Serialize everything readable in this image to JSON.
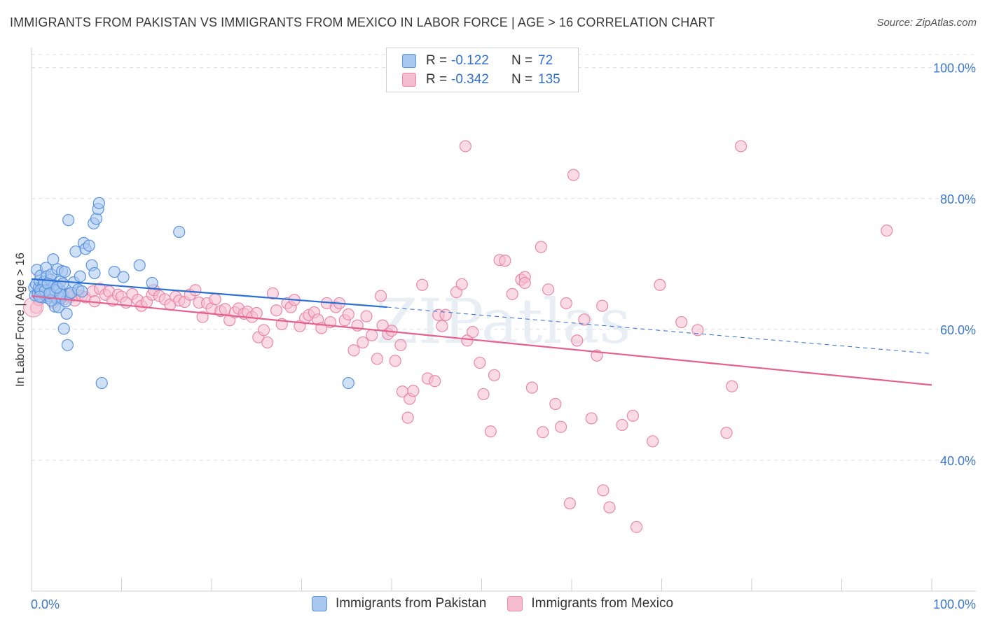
{
  "header": {
    "title": "IMMIGRANTS FROM PAKISTAN VS IMMIGRANTS FROM MEXICO IN LABOR FORCE | AGE > 16 CORRELATION CHART",
    "source": "Source: ZipAtlas.com"
  },
  "watermark": "ZIPatlas",
  "legend": {
    "pakistan": {
      "r_label": "R =",
      "r_value": "-0.122",
      "n_label": "N =",
      "n_value": "72"
    },
    "mexico": {
      "r_label": "R =",
      "r_value": "-0.342",
      "n_label": "N =",
      "n_value": "135"
    }
  },
  "colors": {
    "pakistan_fill": "#a9c8f0",
    "pakistan_stroke": "#5b93dd",
    "pakistan_line": "#2a6fd6",
    "mexico_fill": "#f6bdd0",
    "mexico_stroke": "#e888a8",
    "mexico_line": "#e4608f",
    "axis_text": "#3d78c9",
    "grid": "#dcdcdc"
  },
  "chart_data": {
    "type": "scatter",
    "title": "IMMIGRANTS FROM PAKISTAN VS IMMIGRANTS FROM MEXICO IN LABOR FORCE | AGE > 16 CORRELATION CHART",
    "xlabel": "",
    "ylabel": "In Labor Force | Age > 16",
    "xlim": [
      0,
      100
    ],
    "ylim": [
      20,
      102
    ],
    "x_tick_labels": [
      "0.0%",
      "100.0%"
    ],
    "y_ticks": [
      40,
      60,
      80,
      100
    ],
    "y_tick_labels": [
      "40.0%",
      "60.0%",
      "80.0%",
      "100.0%"
    ],
    "grid": true,
    "legend_position": "top-center",
    "series": [
      {
        "name": "Immigrants from Pakistan",
        "trend": {
          "x0": 0,
          "y0": 67.7,
          "x1": 39.5,
          "y1": 63.4,
          "dashed_to_x": 100,
          "dashed_to_y": 56.3
        },
        "points": [
          [
            0.3,
            66.4
          ],
          [
            0.4,
            65.2
          ],
          [
            0.5,
            66.9
          ],
          [
            0.6,
            69.1
          ],
          [
            0.7,
            65.4
          ],
          [
            0.8,
            66.3
          ],
          [
            0.9,
            67.4
          ],
          [
            1.0,
            68.2
          ],
          [
            1.1,
            65.6
          ],
          [
            1.2,
            64.9
          ],
          [
            1.3,
            66.8
          ],
          [
            1.4,
            67.3
          ],
          [
            1.5,
            65.3
          ],
          [
            1.6,
            69.4
          ],
          [
            1.7,
            68.1
          ],
          [
            1.8,
            64.8
          ],
          [
            1.9,
            65.1
          ],
          [
            2.0,
            66.2
          ],
          [
            2.1,
            67.6
          ],
          [
            2.2,
            68.4
          ],
          [
            2.3,
            65.7
          ],
          [
            2.4,
            70.7
          ],
          [
            2.5,
            66.6
          ],
          [
            2.6,
            63.5
          ],
          [
            2.7,
            65.8
          ],
          [
            2.8,
            64.7
          ],
          [
            2.9,
            69.2
          ],
          [
            3.0,
            63.4
          ],
          [
            3.1,
            66.2
          ],
          [
            3.2,
            67.3
          ],
          [
            3.3,
            64.8
          ],
          [
            3.4,
            68.9
          ],
          [
            3.5,
            65.2
          ],
          [
            3.6,
            60.1
          ],
          [
            3.7,
            68.8
          ],
          [
            3.8,
            64.3
          ],
          [
            3.9,
            62.4
          ],
          [
            4.0,
            57.6
          ],
          [
            4.1,
            76.7
          ],
          [
            4.2,
            65.4
          ],
          [
            4.4,
            65.6
          ],
          [
            4.7,
            67.2
          ],
          [
            4.9,
            71.9
          ],
          [
            5.2,
            66.1
          ],
          [
            5.4,
            68.1
          ],
          [
            5.6,
            65.8
          ],
          [
            5.8,
            73.2
          ],
          [
            6.0,
            72.3
          ],
          [
            6.4,
            72.8
          ],
          [
            6.7,
            69.8
          ],
          [
            6.9,
            76.2
          ],
          [
            7.0,
            68.6
          ],
          [
            7.2,
            76.9
          ],
          [
            7.4,
            78.4
          ],
          [
            7.5,
            79.3
          ],
          [
            7.8,
            51.8
          ],
          [
            9.2,
            68.8
          ],
          [
            10.2,
            68.0
          ],
          [
            12.0,
            69.8
          ],
          [
            13.4,
            67.1
          ],
          [
            16.4,
            74.9
          ],
          [
            35.2,
            51.8
          ],
          [
            1.0,
            66.0
          ],
          [
            1.5,
            65.9
          ],
          [
            2.2,
            64.4
          ],
          [
            2.6,
            66.0
          ],
          [
            3.2,
            65.4
          ],
          [
            0.9,
            65.0
          ],
          [
            1.8,
            67.0
          ],
          [
            2.0,
            65.5
          ],
          [
            2.8,
            66.4
          ],
          [
            3.5,
            67.0
          ]
        ]
      },
      {
        "name": "Immigrants from Mexico",
        "trend": {
          "x0": 0,
          "y0": 65.1,
          "x1": 100,
          "y1": 51.5
        },
        "points": [
          [
            0.5,
            63.3
          ],
          [
            0.8,
            64.5
          ],
          [
            1.2,
            66.0
          ],
          [
            1.6,
            65.0
          ],
          [
            2.0,
            65.6
          ],
          [
            2.4,
            64.1
          ],
          [
            2.8,
            65.5
          ],
          [
            3.2,
            64.9
          ],
          [
            3.6,
            64.6
          ],
          [
            4.0,
            65.3
          ],
          [
            4.4,
            65.0
          ],
          [
            4.8,
            64.4
          ],
          [
            5.2,
            65.2
          ],
          [
            5.6,
            65.1
          ],
          [
            6.0,
            64.9
          ],
          [
            6.8,
            65.8
          ],
          [
            7.0,
            64.3
          ],
          [
            7.6,
            66.2
          ],
          [
            8.2,
            65.3
          ],
          [
            8.6,
            65.8
          ],
          [
            9.0,
            64.4
          ],
          [
            9.6,
            65.3
          ],
          [
            10.0,
            65.0
          ],
          [
            10.5,
            64.1
          ],
          [
            11.2,
            65.4
          ],
          [
            11.8,
            64.5
          ],
          [
            12.2,
            63.6
          ],
          [
            12.8,
            64.2
          ],
          [
            13.4,
            65.3
          ],
          [
            13.6,
            66.0
          ],
          [
            14.2,
            65.1
          ],
          [
            14.8,
            64.6
          ],
          [
            15.4,
            63.8
          ],
          [
            16.0,
            65.0
          ],
          [
            16.4,
            64.4
          ],
          [
            17.0,
            64.2
          ],
          [
            17.6,
            65.3
          ],
          [
            18.2,
            66.0
          ],
          [
            18.6,
            64.1
          ],
          [
            19.0,
            61.9
          ],
          [
            19.5,
            64.0
          ],
          [
            20.0,
            63.2
          ],
          [
            20.4,
            64.6
          ],
          [
            21.0,
            62.8
          ],
          [
            21.5,
            63.1
          ],
          [
            22.0,
            61.4
          ],
          [
            22.6,
            62.6
          ],
          [
            23.0,
            63.2
          ],
          [
            23.6,
            62.4
          ],
          [
            24.0,
            62.7
          ],
          [
            24.5,
            61.9
          ],
          [
            25.0,
            62.5
          ],
          [
            25.2,
            58.8
          ],
          [
            25.8,
            59.9
          ],
          [
            26.2,
            58.0
          ],
          [
            26.8,
            65.5
          ],
          [
            27.2,
            62.9
          ],
          [
            27.8,
            60.8
          ],
          [
            28.4,
            64.0
          ],
          [
            28.8,
            63.4
          ],
          [
            29.2,
            64.5
          ],
          [
            29.8,
            60.5
          ],
          [
            30.4,
            61.7
          ],
          [
            30.8,
            62.2
          ],
          [
            31.4,
            62.6
          ],
          [
            31.8,
            61.5
          ],
          [
            32.2,
            60.2
          ],
          [
            32.8,
            64.0
          ],
          [
            33.2,
            61.1
          ],
          [
            33.8,
            63.4
          ],
          [
            34.2,
            64.0
          ],
          [
            34.8,
            61.4
          ],
          [
            35.2,
            62.3
          ],
          [
            35.8,
            56.8
          ],
          [
            36.2,
            60.6
          ],
          [
            36.8,
            58.0
          ],
          [
            37.2,
            62.0
          ],
          [
            37.8,
            59.1
          ],
          [
            38.4,
            55.5
          ],
          [
            38.8,
            65.1
          ],
          [
            39.0,
            60.6
          ],
          [
            39.6,
            59.3
          ],
          [
            40.0,
            59.8
          ],
          [
            40.4,
            55.2
          ],
          [
            41.0,
            57.6
          ],
          [
            41.2,
            50.5
          ],
          [
            41.8,
            46.5
          ],
          [
            42.0,
            49.4
          ],
          [
            42.4,
            50.6
          ],
          [
            43.4,
            66.8
          ],
          [
            44.0,
            52.5
          ],
          [
            44.8,
            52.1
          ],
          [
            45.2,
            62.2
          ],
          [
            45.6,
            60.5
          ],
          [
            46.0,
            62.2
          ],
          [
            47.2,
            65.7
          ],
          [
            47.8,
            66.9
          ],
          [
            48.2,
            88.0
          ],
          [
            48.4,
            58.3
          ],
          [
            49.0,
            59.6
          ],
          [
            49.8,
            54.9
          ],
          [
            50.2,
            50.1
          ],
          [
            51.4,
            53.0
          ],
          [
            51.0,
            44.4
          ],
          [
            52.0,
            70.6
          ],
          [
            52.6,
            70.5
          ],
          [
            53.4,
            65.4
          ],
          [
            54.4,
            67.6
          ],
          [
            54.8,
            68.0
          ],
          [
            54.8,
            67.1
          ],
          [
            55.6,
            51.1
          ],
          [
            56.6,
            72.6
          ],
          [
            56.8,
            44.3
          ],
          [
            57.4,
            66.1
          ],
          [
            58.2,
            48.6
          ],
          [
            58.8,
            45.1
          ],
          [
            59.4,
            64.0
          ],
          [
            59.8,
            33.4
          ],
          [
            60.2,
            83.6
          ],
          [
            60.6,
            58.3
          ],
          [
            61.4,
            61.5
          ],
          [
            62.2,
            46.4
          ],
          [
            62.8,
            56.0
          ],
          [
            63.4,
            63.6
          ],
          [
            63.5,
            35.4
          ],
          [
            64.2,
            32.8
          ],
          [
            65.6,
            45.4
          ],
          [
            66.8,
            46.8
          ],
          [
            67.2,
            29.8
          ],
          [
            69.0,
            42.9
          ],
          [
            69.8,
            66.8
          ],
          [
            72.2,
            61.1
          ],
          [
            74.0,
            59.9
          ],
          [
            77.2,
            44.2
          ],
          [
            77.8,
            51.3
          ],
          [
            78.8,
            88.0
          ],
          [
            95.0,
            75.1
          ]
        ]
      }
    ]
  },
  "bottom_legend": {
    "pakistan_label": "Immigrants from Pakistan",
    "mexico_label": "Immigrants from Mexico"
  }
}
